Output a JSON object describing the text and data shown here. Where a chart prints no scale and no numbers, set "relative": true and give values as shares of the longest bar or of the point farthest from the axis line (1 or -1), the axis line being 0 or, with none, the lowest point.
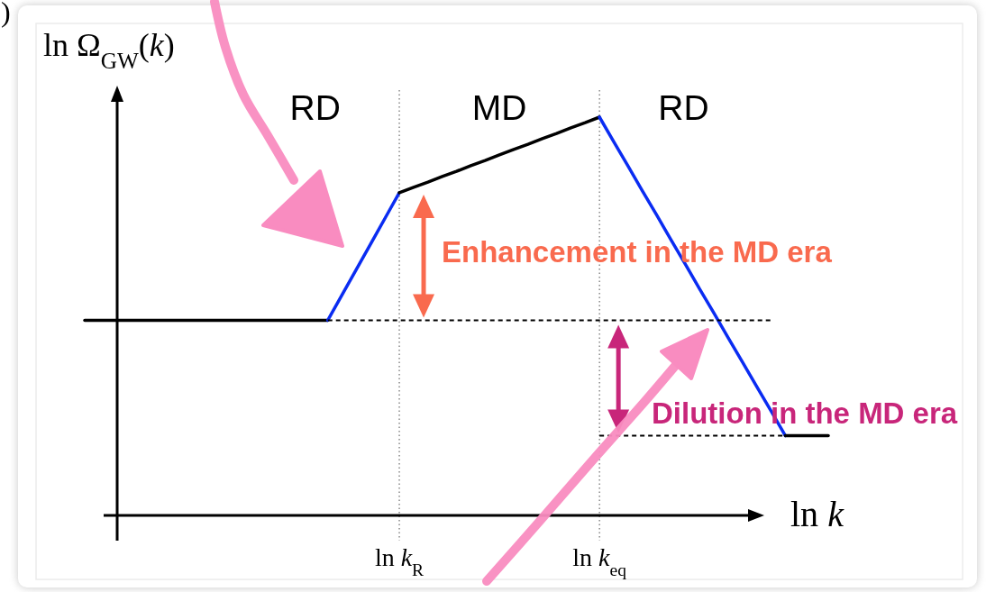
{
  "chart_data": {
    "type": "line",
    "xlabel": "ln k",
    "ylabel": "ln Ω$_{GW}$(k)",
    "relative": true,
    "categories": [
      null,
      null,
      null,
      null,
      null,
      null,
      null,
      null,
      null,
      null,
      null,
      null,
      null,
      null,
      null,
      null,
      null,
      null,
      null,
      null,
      null,
      null,
      "ln k$_{R}$",
      null,
      null,
      null,
      null,
      null,
      null,
      null,
      null,
      null,
      null,
      null,
      null,
      null,
      "ln k$_{eq}$",
      null,
      null,
      null,
      null,
      null,
      null,
      null,
      null,
      null,
      null,
      null,
      null,
      null,
      null,
      null,
      null
    ],
    "series": [
      {
        "color": "#000000",
        "values": [
          0.49,
          0.49,
          0.49,
          0.49,
          0.49,
          0.49,
          0.49,
          0.49,
          0.49,
          0.49,
          0.49,
          0.49,
          0.49,
          0.49,
          0.49,
          0.49,
          0.49,
          0.49,
          null,
          null,
          null,
          null,
          null,
          null,
          null,
          null,
          null,
          null,
          null,
          null,
          null,
          null,
          null,
          null,
          null,
          null,
          null,
          null,
          null,
          null,
          null,
          null,
          null,
          null,
          null,
          null,
          null,
          null,
          null,
          null,
          null,
          null,
          null
        ]
      },
      {
        "color": "#0a2cf2",
        "values": [
          null,
          null,
          null,
          null,
          null,
          null,
          null,
          null,
          null,
          null,
          null,
          null,
          null,
          null,
          null,
          null,
          null,
          0.49,
          0.554,
          0.618,
          0.682,
          0.746,
          0.81,
          null,
          null,
          null,
          null,
          null,
          null,
          null,
          null,
          null,
          null,
          null,
          null,
          null,
          null,
          null,
          null,
          null,
          null,
          null,
          null,
          null,
          null,
          null,
          null,
          null,
          null,
          null,
          null,
          null,
          null
        ]
      },
      {
        "color": "#000000",
        "values": [
          null,
          null,
          null,
          null,
          null,
          null,
          null,
          null,
          null,
          null,
          null,
          null,
          null,
          null,
          null,
          null,
          null,
          null,
          null,
          null,
          null,
          null,
          0.81,
          0.824,
          0.837,
          0.851,
          0.864,
          0.878,
          0.891,
          0.905,
          0.919,
          0.932,
          0.946,
          0.959,
          0.973,
          0.986,
          1,
          null,
          null,
          null,
          null,
          null,
          null,
          null,
          null,
          null,
          null,
          null,
          null,
          null,
          null,
          null,
          null
        ]
      },
      {
        "color": "#0a2cf2",
        "values": [
          null,
          null,
          null,
          null,
          null,
          null,
          null,
          null,
          null,
          null,
          null,
          null,
          null,
          null,
          null,
          null,
          null,
          null,
          null,
          null,
          null,
          null,
          null,
          null,
          null,
          null,
          null,
          null,
          null,
          null,
          null,
          null,
          null,
          null,
          null,
          null,
          1,
          0.938,
          0.877,
          0.815,
          0.754,
          0.692,
          0.631,
          0.569,
          0.508,
          0.446,
          0.385,
          0.323,
          0.262,
          0.2,
          null,
          null,
          null
        ]
      },
      {
        "color": "#000000",
        "values": [
          null,
          null,
          null,
          null,
          null,
          null,
          null,
          null,
          null,
          null,
          null,
          null,
          null,
          null,
          null,
          null,
          null,
          null,
          null,
          null,
          null,
          null,
          null,
          null,
          null,
          null,
          null,
          null,
          null,
          null,
          null,
          null,
          null,
          null,
          null,
          null,
          null,
          null,
          null,
          null,
          null,
          null,
          null,
          null,
          null,
          null,
          null,
          null,
          null,
          0.2,
          0.2,
          0.2,
          0.2
        ]
      },
      {
        "color": "#000000",
        "line_style": "dashed",
        "values": [
          null,
          null,
          null,
          null,
          null,
          null,
          null,
          null,
          null,
          null,
          null,
          null,
          null,
          null,
          null,
          null,
          null,
          0.49,
          0.49,
          0.49,
          0.49,
          0.49,
          0.49,
          0.49,
          0.49,
          0.49,
          0.49,
          0.49,
          0.49,
          0.49,
          0.49,
          0.49,
          0.49,
          0.49,
          0.49,
          0.49,
          0.49,
          0.49,
          0.49,
          0.49,
          0.49,
          0.49,
          0.49,
          0.49,
          0.49,
          0.49,
          0.49,
          0.49,
          0.49,
          null,
          null,
          null,
          null
        ]
      },
      {
        "color": "#000000",
        "line_style": "dashed",
        "values": [
          null,
          null,
          null,
          null,
          null,
          null,
          null,
          null,
          null,
          null,
          null,
          null,
          null,
          null,
          null,
          null,
          null,
          null,
          null,
          null,
          null,
          null,
          null,
          null,
          null,
          null,
          null,
          null,
          null,
          null,
          null,
          null,
          null,
          null,
          null,
          null,
          0.2,
          0.2,
          0.2,
          0.2,
          0.2,
          0.2,
          0.2,
          0.2,
          0.2,
          0.2,
          0.2,
          0.2,
          0.2,
          0.2,
          null,
          null,
          null
        ]
      }
    ],
    "ref_lines": [
      {
        "axis": "x",
        "value": "ln k$_{R}$",
        "color": "#777777",
        "line_style": "dotted"
      },
      {
        "axis": "x",
        "value": "ln k$_{eq}$",
        "color": "#777777",
        "line_style": "dotted"
      }
    ],
    "annotations": [
      ")",
      "RD",
      "MD",
      "RD",
      "Enhancement in the MD era",
      "Dilution in the MD era"
    ]
  }
}
